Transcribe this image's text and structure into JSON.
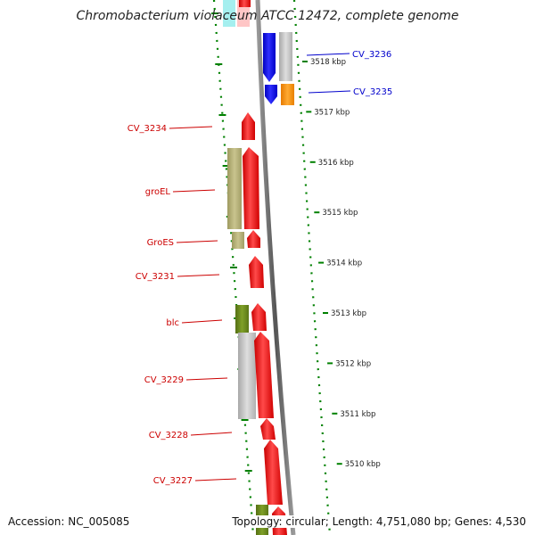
{
  "title": "Chromobacterium violaceum ATCC 12472, complete genome",
  "accession": "Accession: NC_005085",
  "topology": "Topology: circular; Length: 4,751,080 bp; Genes: 4,530",
  "colors": {
    "reverse_gene": "#ff0000",
    "forward_gene": "#0000ff",
    "reverse_label": "#cc0000",
    "forward_label": "#0000cc",
    "cog_olive": "#b5b07a",
    "cog_green": "#6e8c1e",
    "cog_gray": "#c0c0c0",
    "cog_orange": "#ff8c00",
    "cog_cyan": "#7fe8e8",
    "gc_skew_tick": "#008000",
    "backbone": "#777777"
  },
  "forward_genes": [
    {
      "label": "CV_3236",
      "cog_color": "gray"
    },
    {
      "label": "CV_3235",
      "cog_color": "orange"
    }
  ],
  "reverse_genes": [
    {
      "label": "CV_3234",
      "cog_color": "none"
    },
    {
      "label": "groEL",
      "cog_color": "olive"
    },
    {
      "label": "GroES",
      "cog_color": "olive"
    },
    {
      "label": "CV_3231",
      "cog_color": "none"
    },
    {
      "label": "blc",
      "cog_color": "green"
    },
    {
      "label": "CV_3229",
      "cog_color": "gray"
    },
    {
      "label": "CV_3228",
      "cog_color": "none"
    },
    {
      "label": "CV_3227",
      "cog_color": "none"
    }
  ],
  "scale_ticks": [
    {
      "label": "3518 kbp"
    },
    {
      "label": "3517 kbp"
    },
    {
      "label": "3516 kbp"
    },
    {
      "label": "3515 kbp"
    },
    {
      "label": "3514 kbp"
    },
    {
      "label": "3513 kbp"
    },
    {
      "label": "3512 kbp"
    },
    {
      "label": "3511 kbp"
    },
    {
      "label": "3510 kbp"
    }
  ]
}
